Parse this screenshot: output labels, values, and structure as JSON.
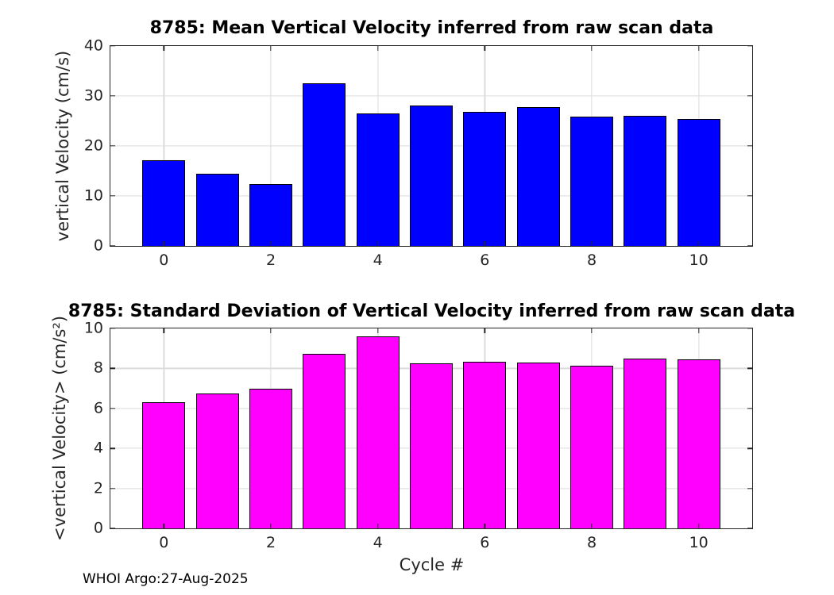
{
  "figure": {
    "footer": "WHOI Argo:27-Aug-2025",
    "background": "#ffffff",
    "axis_color": "#262626",
    "grid_color": "#dcdcdc"
  },
  "chart_data": [
    {
      "type": "bar",
      "title": "8785: Mean Vertical Velocity inferred from raw scan data",
      "ylabel": "vertical Velocity (cm/s)",
      "xlabel": "",
      "categories": [
        0,
        1,
        2,
        3,
        4,
        5,
        6,
        7,
        8,
        9,
        10
      ],
      "values": [
        17.2,
        14.5,
        12.4,
        32.5,
        26.5,
        28.1,
        26.8,
        27.8,
        25.8,
        26.0,
        25.4
      ],
      "bar_color": "#0000ff",
      "bar_edge_color": "#000000",
      "bar_width": 0.8,
      "xlim": [
        -1,
        11
      ],
      "ylim": [
        0,
        40
      ],
      "xticks": [
        0,
        2,
        4,
        6,
        8,
        10
      ],
      "yticks": [
        0,
        10,
        20,
        30,
        40
      ],
      "grid": true,
      "legend": "none"
    },
    {
      "type": "bar",
      "title": "8785: Standard Deviation of Vertical Velocity inferred from raw scan data",
      "ylabel": "<vertical Velocity> (cm/s²)",
      "xlabel": "Cycle #",
      "categories": [
        0,
        1,
        2,
        3,
        4,
        5,
        6,
        7,
        8,
        9,
        10
      ],
      "values": [
        6.3,
        6.75,
        7.0,
        8.75,
        9.6,
        8.25,
        8.35,
        8.3,
        8.15,
        8.5,
        8.45
      ],
      "bar_color": "#ff00ff",
      "bar_edge_color": "#000000",
      "bar_width": 0.8,
      "xlim": [
        -1,
        11
      ],
      "ylim": [
        0,
        10
      ],
      "xticks": [
        0,
        2,
        4,
        6,
        8,
        10
      ],
      "yticks": [
        0,
        2,
        4,
        6,
        8,
        10
      ],
      "grid": true,
      "legend": "none"
    }
  ]
}
